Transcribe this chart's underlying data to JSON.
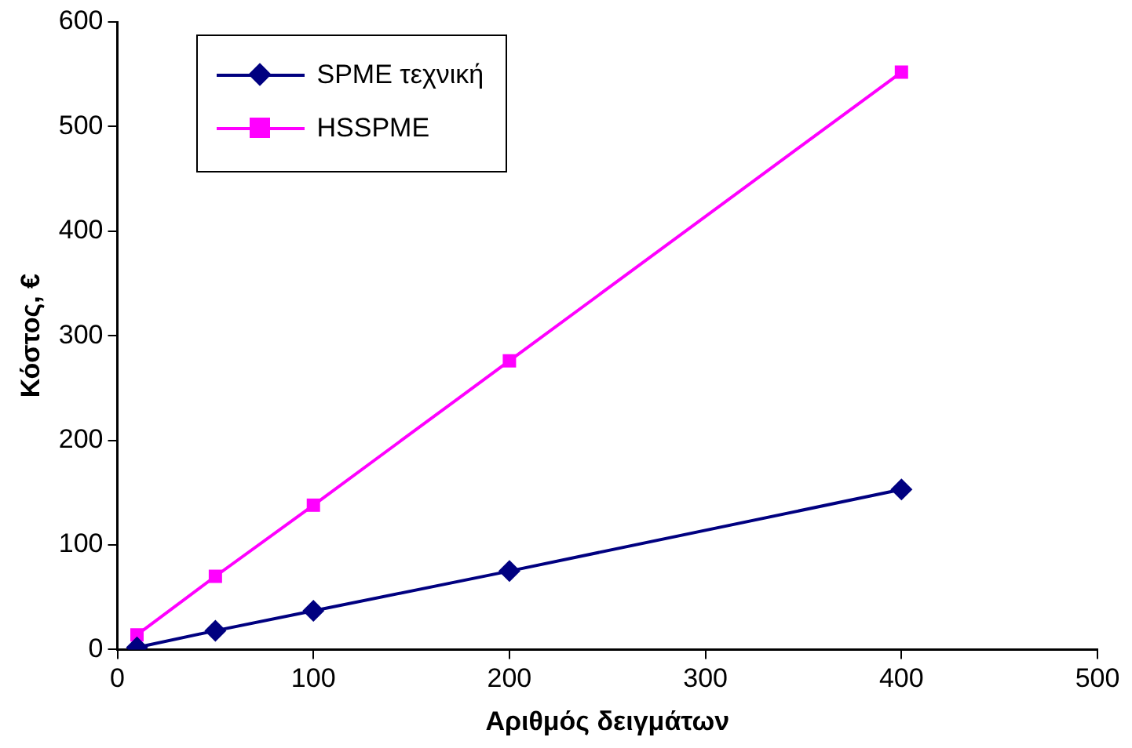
{
  "chart_data": {
    "type": "line",
    "xlabel": "Αριθμός δειγμάτων",
    "ylabel": "Κόστος, €",
    "x": [
      10,
      50,
      100,
      200,
      400
    ],
    "series": [
      {
        "name": "SPME τεχνική",
        "color": "#000080",
        "marker": "diamond",
        "values": [
          2,
          18,
          37,
          75,
          153
        ]
      },
      {
        "name": "HSSPME",
        "color": "#ff00ff",
        "marker": "square",
        "values": [
          14,
          70,
          138,
          276,
          552
        ]
      }
    ],
    "xlim": [
      0,
      500
    ],
    "xticks": [
      0,
      100,
      200,
      300,
      400,
      500
    ],
    "ylim": [
      0,
      600
    ],
    "yticks": [
      0,
      100,
      200,
      300,
      400,
      500,
      600
    ],
    "grid": false,
    "legend": "top left",
    "line_style": "solid"
  }
}
